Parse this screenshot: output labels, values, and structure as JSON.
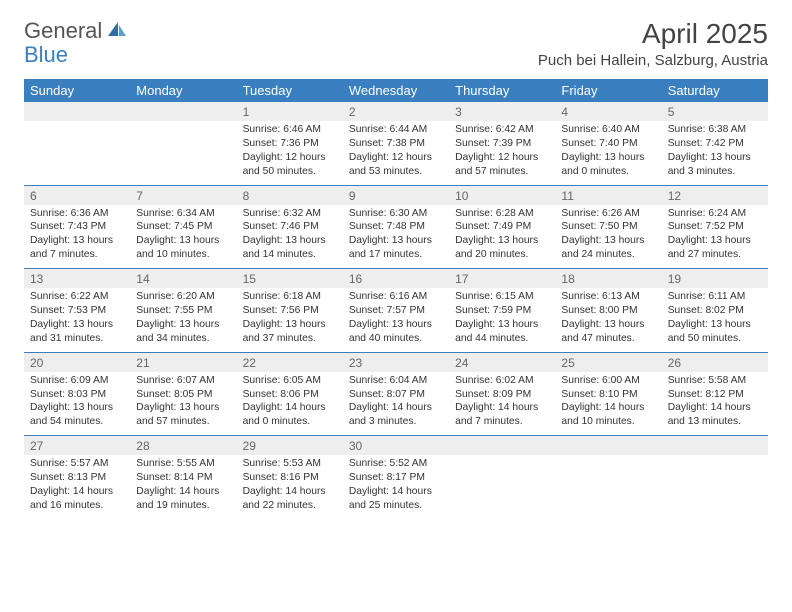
{
  "logo": {
    "general": "General",
    "blue": "Blue"
  },
  "title": "April 2025",
  "subtitle": "Puch bei Hallein, Salzburg, Austria",
  "colors": {
    "header_bg": "#3a7fbf",
    "header_text": "#ffffff",
    "num_row_bg": "#eeeeee",
    "num_text": "#666666",
    "body_text": "#333333",
    "rule": "#3a7fbf",
    "page_bg": "#ffffff",
    "logo_gray": "#555555",
    "logo_blue": "#3a7fbf"
  },
  "fonts": {
    "title_size": 28,
    "subtitle_size": 15,
    "weekday_size": 13,
    "daynum_size": 12,
    "cell_size": 10.3
  },
  "weekdays": [
    "Sunday",
    "Monday",
    "Tuesday",
    "Wednesday",
    "Thursday",
    "Friday",
    "Saturday"
  ],
  "weeks": [
    [
      null,
      null,
      {
        "n": "1",
        "sunrise": "6:46 AM",
        "sunset": "7:36 PM",
        "daylight": "12 hours and 50 minutes."
      },
      {
        "n": "2",
        "sunrise": "6:44 AM",
        "sunset": "7:38 PM",
        "daylight": "12 hours and 53 minutes."
      },
      {
        "n": "3",
        "sunrise": "6:42 AM",
        "sunset": "7:39 PM",
        "daylight": "12 hours and 57 minutes."
      },
      {
        "n": "4",
        "sunrise": "6:40 AM",
        "sunset": "7:40 PM",
        "daylight": "13 hours and 0 minutes."
      },
      {
        "n": "5",
        "sunrise": "6:38 AM",
        "sunset": "7:42 PM",
        "daylight": "13 hours and 3 minutes."
      }
    ],
    [
      {
        "n": "6",
        "sunrise": "6:36 AM",
        "sunset": "7:43 PM",
        "daylight": "13 hours and 7 minutes."
      },
      {
        "n": "7",
        "sunrise": "6:34 AM",
        "sunset": "7:45 PM",
        "daylight": "13 hours and 10 minutes."
      },
      {
        "n": "8",
        "sunrise": "6:32 AM",
        "sunset": "7:46 PM",
        "daylight": "13 hours and 14 minutes."
      },
      {
        "n": "9",
        "sunrise": "6:30 AM",
        "sunset": "7:48 PM",
        "daylight": "13 hours and 17 minutes."
      },
      {
        "n": "10",
        "sunrise": "6:28 AM",
        "sunset": "7:49 PM",
        "daylight": "13 hours and 20 minutes."
      },
      {
        "n": "11",
        "sunrise": "6:26 AM",
        "sunset": "7:50 PM",
        "daylight": "13 hours and 24 minutes."
      },
      {
        "n": "12",
        "sunrise": "6:24 AM",
        "sunset": "7:52 PM",
        "daylight": "13 hours and 27 minutes."
      }
    ],
    [
      {
        "n": "13",
        "sunrise": "6:22 AM",
        "sunset": "7:53 PM",
        "daylight": "13 hours and 31 minutes."
      },
      {
        "n": "14",
        "sunrise": "6:20 AM",
        "sunset": "7:55 PM",
        "daylight": "13 hours and 34 minutes."
      },
      {
        "n": "15",
        "sunrise": "6:18 AM",
        "sunset": "7:56 PM",
        "daylight": "13 hours and 37 minutes."
      },
      {
        "n": "16",
        "sunrise": "6:16 AM",
        "sunset": "7:57 PM",
        "daylight": "13 hours and 40 minutes."
      },
      {
        "n": "17",
        "sunrise": "6:15 AM",
        "sunset": "7:59 PM",
        "daylight": "13 hours and 44 minutes."
      },
      {
        "n": "18",
        "sunrise": "6:13 AM",
        "sunset": "8:00 PM",
        "daylight": "13 hours and 47 minutes."
      },
      {
        "n": "19",
        "sunrise": "6:11 AM",
        "sunset": "8:02 PM",
        "daylight": "13 hours and 50 minutes."
      }
    ],
    [
      {
        "n": "20",
        "sunrise": "6:09 AM",
        "sunset": "8:03 PM",
        "daylight": "13 hours and 54 minutes."
      },
      {
        "n": "21",
        "sunrise": "6:07 AM",
        "sunset": "8:05 PM",
        "daylight": "13 hours and 57 minutes."
      },
      {
        "n": "22",
        "sunrise": "6:05 AM",
        "sunset": "8:06 PM",
        "daylight": "14 hours and 0 minutes."
      },
      {
        "n": "23",
        "sunrise": "6:04 AM",
        "sunset": "8:07 PM",
        "daylight": "14 hours and 3 minutes."
      },
      {
        "n": "24",
        "sunrise": "6:02 AM",
        "sunset": "8:09 PM",
        "daylight": "14 hours and 7 minutes."
      },
      {
        "n": "25",
        "sunrise": "6:00 AM",
        "sunset": "8:10 PM",
        "daylight": "14 hours and 10 minutes."
      },
      {
        "n": "26",
        "sunrise": "5:58 AM",
        "sunset": "8:12 PM",
        "daylight": "14 hours and 13 minutes."
      }
    ],
    [
      {
        "n": "27",
        "sunrise": "5:57 AM",
        "sunset": "8:13 PM",
        "daylight": "14 hours and 16 minutes."
      },
      {
        "n": "28",
        "sunrise": "5:55 AM",
        "sunset": "8:14 PM",
        "daylight": "14 hours and 19 minutes."
      },
      {
        "n": "29",
        "sunrise": "5:53 AM",
        "sunset": "8:16 PM",
        "daylight": "14 hours and 22 minutes."
      },
      {
        "n": "30",
        "sunrise": "5:52 AM",
        "sunset": "8:17 PM",
        "daylight": "14 hours and 25 minutes."
      },
      null,
      null,
      null
    ]
  ],
  "labels": {
    "sunrise": "Sunrise:",
    "sunset": "Sunset:",
    "daylight": "Daylight:"
  }
}
